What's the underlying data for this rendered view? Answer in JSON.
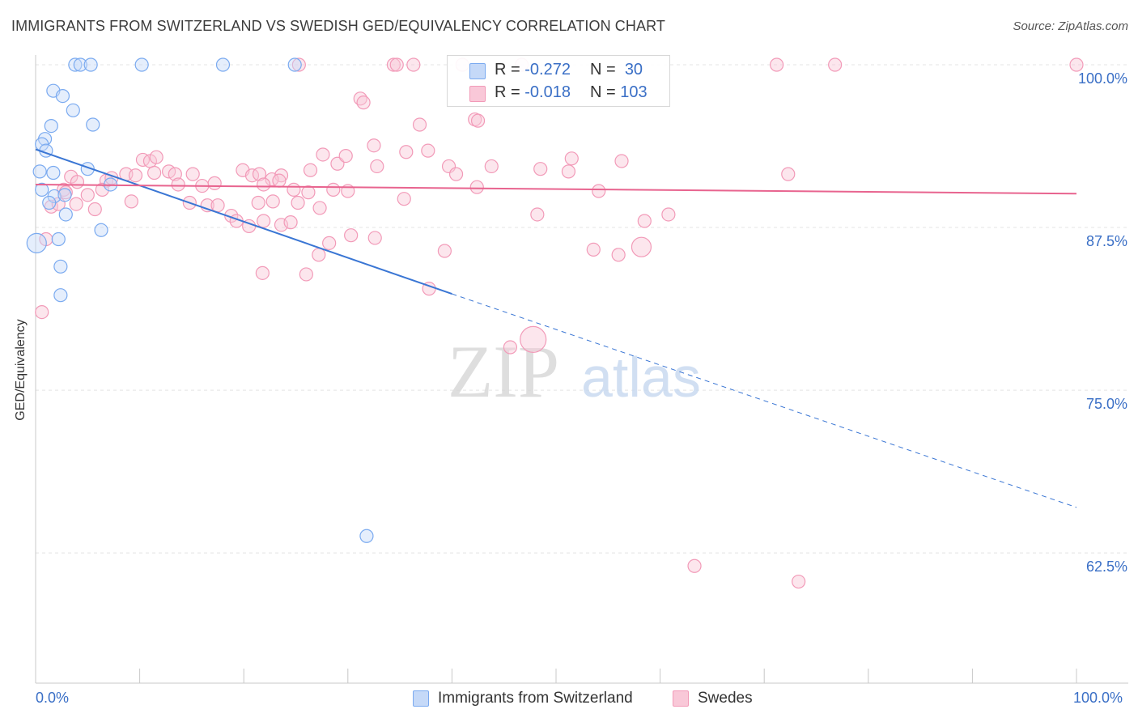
{
  "title": "IMMIGRANTS FROM SWITZERLAND VS SWEDISH GED/EQUIVALENCY CORRELATION CHART",
  "source": "Source: ZipAtlas.com",
  "watermark": {
    "zip": "ZIP",
    "atlas": "atlas"
  },
  "legend": {
    "rows": [
      {
        "r_label": "R = ",
        "r_value": "-0.272",
        "n_label": "N = ",
        "n_value": "30"
      },
      {
        "r_label": "R = ",
        "r_value": "-0.018",
        "n_label": "N = ",
        "n_value": "103"
      }
    ]
  },
  "chart_data": {
    "type": "scatter",
    "ylabel": "GED/Equivalency",
    "xlabel": "",
    "xlim": [
      0,
      100
    ],
    "ylim": [
      52.5,
      101.5
    ],
    "x_tick_labels": [
      "0.0%",
      "100.0%"
    ],
    "y_ticks": [
      62.5,
      75.0,
      87.5,
      100.0
    ],
    "y_tick_labels": [
      "62.5%",
      "75.0%",
      "87.5%",
      "100.0%"
    ],
    "grid": true,
    "legend_position": "bottom",
    "colors": {
      "switzerland": "#7aaaf0",
      "swedes": "#f29ab8",
      "blue_line": "#3a76d4",
      "pink_line": "#e8648f",
      "tick_label": "#3a6fc6"
    },
    "series": [
      {
        "name": "Immigrants from Switzerland",
        "points": [
          [
            3.8,
            100.0
          ],
          [
            4.3,
            100.0
          ],
          [
            5.3,
            100.0
          ],
          [
            10.2,
            100.0
          ],
          [
            18.0,
            100.0
          ],
          [
            24.9,
            100.0
          ],
          [
            1.7,
            98.0
          ],
          [
            2.6,
            97.6
          ],
          [
            3.6,
            96.5
          ],
          [
            5.5,
            95.4
          ],
          [
            1.5,
            95.3
          ],
          [
            0.9,
            94.3
          ],
          [
            0.6,
            93.9
          ],
          [
            1.0,
            93.4
          ],
          [
            5.0,
            92.0
          ],
          [
            0.4,
            91.8
          ],
          [
            1.7,
            91.7
          ],
          [
            7.2,
            90.8
          ],
          [
            0.6,
            90.4
          ],
          [
            1.8,
            89.9
          ],
          [
            2.8,
            90.0
          ],
          [
            1.3,
            89.4
          ],
          [
            2.9,
            88.5
          ],
          [
            6.3,
            87.3
          ],
          [
            0.1,
            86.3
          ],
          [
            2.2,
            86.6
          ],
          [
            2.4,
            84.5
          ],
          [
            2.4,
            82.3
          ],
          [
            31.8,
            63.8
          ]
        ],
        "sizes": [
          1,
          1,
          1,
          1,
          1,
          1,
          1,
          1,
          1,
          1,
          1,
          1,
          1,
          1,
          1,
          1,
          1,
          1,
          1,
          1,
          1,
          1,
          1,
          1,
          2,
          1,
          1,
          1,
          1
        ]
      },
      {
        "name": "Swedes",
        "points": [
          [
            25.3,
            100.0
          ],
          [
            34.4,
            100.0
          ],
          [
            34.7,
            100.0
          ],
          [
            36.3,
            100.0
          ],
          [
            41.0,
            100.0
          ],
          [
            46.7,
            100.0
          ],
          [
            71.2,
            100.0
          ],
          [
            76.8,
            100.0
          ],
          [
            100.0,
            100.0
          ],
          [
            31.2,
            97.4
          ],
          [
            31.5,
            97.1
          ],
          [
            42.2,
            95.8
          ],
          [
            42.5,
            95.7
          ],
          [
            36.9,
            95.4
          ],
          [
            32.5,
            93.8
          ],
          [
            35.6,
            93.3
          ],
          [
            37.7,
            93.4
          ],
          [
            27.6,
            93.1
          ],
          [
            29.0,
            92.4
          ],
          [
            29.8,
            93.0
          ],
          [
            10.3,
            92.7
          ],
          [
            11.0,
            92.6
          ],
          [
            11.6,
            92.9
          ],
          [
            51.5,
            92.8
          ],
          [
            56.3,
            92.6
          ],
          [
            43.8,
            92.2
          ],
          [
            48.5,
            92.0
          ],
          [
            39.7,
            92.2
          ],
          [
            32.8,
            92.2
          ],
          [
            40.4,
            91.6
          ],
          [
            26.4,
            91.9
          ],
          [
            19.9,
            91.9
          ],
          [
            20.8,
            91.5
          ],
          [
            21.5,
            91.6
          ],
          [
            23.6,
            91.5
          ],
          [
            22.7,
            91.2
          ],
          [
            8.7,
            91.6
          ],
          [
            9.6,
            91.5
          ],
          [
            11.4,
            91.7
          ],
          [
            12.8,
            91.8
          ],
          [
            13.4,
            91.6
          ],
          [
            15.1,
            91.6
          ],
          [
            6.8,
            91.1
          ],
          [
            7.3,
            91.3
          ],
          [
            3.4,
            91.4
          ],
          [
            4.0,
            91.0
          ],
          [
            13.7,
            90.8
          ],
          [
            16.0,
            90.7
          ],
          [
            17.2,
            90.9
          ],
          [
            21.9,
            90.8
          ],
          [
            23.4,
            91.1
          ],
          [
            2.7,
            90.4
          ],
          [
            2.9,
            90.2
          ],
          [
            6.4,
            90.4
          ],
          [
            5.0,
            90.0
          ],
          [
            24.8,
            90.4
          ],
          [
            26.2,
            90.2
          ],
          [
            28.6,
            90.4
          ],
          [
            30.0,
            90.3
          ],
          [
            42.4,
            90.6
          ],
          [
            54.1,
            90.3
          ],
          [
            72.3,
            91.6
          ],
          [
            51.2,
            91.8
          ],
          [
            14.8,
            89.4
          ],
          [
            16.5,
            89.2
          ],
          [
            17.5,
            89.2
          ],
          [
            9.2,
            89.5
          ],
          [
            21.4,
            89.4
          ],
          [
            22.8,
            89.5
          ],
          [
            25.2,
            89.4
          ],
          [
            27.3,
            89.0
          ],
          [
            35.4,
            89.7
          ],
          [
            3.9,
            89.3
          ],
          [
            5.7,
            88.9
          ],
          [
            1.5,
            89.1
          ],
          [
            2.2,
            89.3
          ],
          [
            18.8,
            88.4
          ],
          [
            19.3,
            88.0
          ],
          [
            20.5,
            87.6
          ],
          [
            21.9,
            88.0
          ],
          [
            23.6,
            87.7
          ],
          [
            24.5,
            87.9
          ],
          [
            48.2,
            88.5
          ],
          [
            58.5,
            88.0
          ],
          [
            60.8,
            88.5
          ],
          [
            30.3,
            86.9
          ],
          [
            28.2,
            86.3
          ],
          [
            32.6,
            86.7
          ],
          [
            1.0,
            86.6
          ],
          [
            27.2,
            85.4
          ],
          [
            39.3,
            85.7
          ],
          [
            53.6,
            85.8
          ],
          [
            56.0,
            85.4
          ],
          [
            58.2,
            86.0
          ],
          [
            21.8,
            84.0
          ],
          [
            26.0,
            83.9
          ],
          [
            37.8,
            82.8
          ],
          [
            0.6,
            81.0
          ],
          [
            45.6,
            78.3
          ],
          [
            47.8,
            78.9
          ],
          [
            63.3,
            61.5
          ],
          [
            73.3,
            60.3
          ]
        ],
        "sizes": [
          1,
          1,
          1,
          1,
          1,
          1,
          1,
          1,
          1,
          1,
          1,
          1,
          1,
          1,
          1,
          1,
          1,
          1,
          1,
          1,
          1,
          1,
          1,
          1,
          1,
          1,
          1,
          1,
          1,
          1,
          1,
          1,
          1,
          1,
          1,
          1,
          1,
          1,
          1,
          1,
          1,
          1,
          1,
          1,
          1,
          1,
          1,
          1,
          1,
          1,
          1,
          1,
          1,
          1,
          1,
          1,
          1,
          1,
          1,
          1,
          1,
          1,
          1,
          1,
          1,
          1,
          1,
          1,
          1,
          1,
          1,
          1,
          1,
          1,
          1,
          1,
          1,
          1,
          1,
          1,
          1,
          1,
          1,
          1,
          1,
          1,
          1,
          1,
          1,
          1,
          1,
          1,
          1,
          2,
          1,
          1,
          1,
          1,
          1,
          3,
          1,
          1,
          1,
          1
        ]
      }
    ],
    "trend_lines": [
      {
        "series": "Immigrants from Switzerland",
        "x": [
          0,
          40
        ],
        "y": [
          93.5,
          82.4
        ],
        "dashed_to_x": 100,
        "dashed_to_y": 66.0
      },
      {
        "series": "Swedes",
        "x": [
          0,
          100
        ],
        "y": [
          90.8,
          90.1
        ]
      }
    ]
  }
}
